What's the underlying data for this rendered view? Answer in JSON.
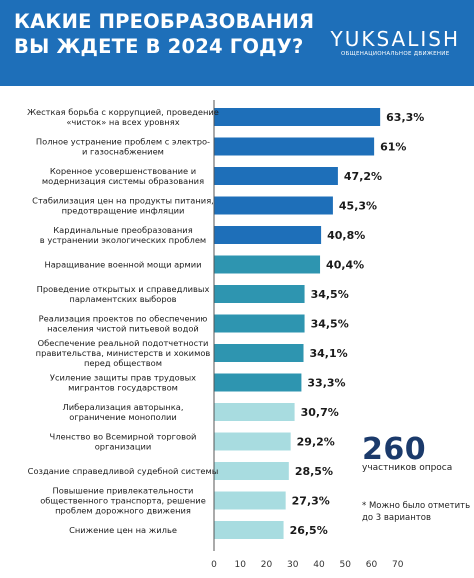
{
  "header": {
    "title_line1": "КАКИЕ ПРЕОБРАЗОВАНИЯ",
    "title_line2": "ВЫ ЖДЕТЕ В 2024 ГОДУ?",
    "brand": "YUKSALISH",
    "brand_sub": "ОБЩЕНАЦИОНАЛЬНОЕ ДВИЖЕНИЕ"
  },
  "colors": {
    "header": "#1e6fb9",
    "bar_dark": "#1e6fb9",
    "bar_mid": "#2e95b0",
    "bar_light": "#a8dce0"
  },
  "chart_data": {
    "type": "bar",
    "orientation": "horizontal",
    "categories": [
      [
        "Жесткая борьба с коррупцией, проведение",
        "«чисток» на всех уровнях"
      ],
      [
        "Полное устранение проблем с электро-",
        "и газоснабжением"
      ],
      [
        "Коренное усовершенствование и",
        "модернизация системы образования"
      ],
      [
        "Стабилизация цен на продукты питания,",
        "предотвращение инфляции"
      ],
      [
        "Кардинальные преобразования",
        "в устранении экологических проблем"
      ],
      [
        "Наращивание военной мощи армии"
      ],
      [
        "Проведение открытых и справедливых",
        "парламентских выборов"
      ],
      [
        "Реализация проектов по обеспечению",
        "населения чистой питьевой водой"
      ],
      [
        "Обеспечение реальной подотчетности",
        "правительства, министерств и хокимов",
        "перед обществом"
      ],
      [
        "Усиление защиты прав трудовых",
        "мигрантов государством"
      ],
      [
        "Либерализация авторынка,",
        "ограничение монополии"
      ],
      [
        "Членство во Всемирной торговой",
        "организации"
      ],
      [
        "Создание справедливой судебной системы"
      ],
      [
        "Повышение привлекательности",
        "общественного транспорта, решение",
        "проблем дорожного движения"
      ],
      [
        "Снижение цен на жилье"
      ]
    ],
    "values": [
      63.3,
      61,
      47.2,
      45.3,
      40.8,
      40.4,
      34.5,
      34.5,
      34.1,
      33.3,
      30.7,
      29.2,
      28.5,
      27.3,
      26.5
    ],
    "value_labels": [
      "63,3%",
      "61%",
      "47,2%",
      "45,3%",
      "40,8%",
      "40,4%",
      "34,5%",
      "34,5%",
      "34,1%",
      "33,3%",
      "30,7%",
      "29,2%",
      "28,5%",
      "27,3%",
      "26,5%"
    ],
    "color_groups": [
      "dark",
      "dark",
      "dark",
      "dark",
      "dark",
      "mid",
      "mid",
      "mid",
      "mid",
      "mid",
      "light",
      "light",
      "light",
      "light",
      "light"
    ],
    "xlim": [
      0,
      70
    ],
    "xticks": [
      0,
      10,
      20,
      30,
      40,
      50,
      60,
      70
    ],
    "grid": false
  },
  "notes": {
    "participants_count": "260",
    "participants_label": "участников опроса",
    "footnote_line1": "* Можно было отметить",
    "footnote_line2": "до 3 вариантов"
  }
}
